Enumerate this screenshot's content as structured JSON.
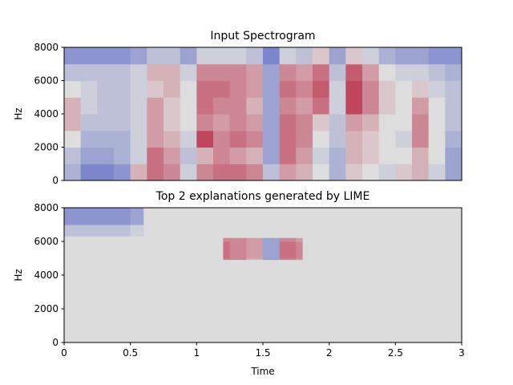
{
  "chart_data": [
    {
      "type": "heatmap",
      "title": "Input Spectrogram",
      "ylabel": "Hz",
      "xlim": [
        0,
        3
      ],
      "ylim": [
        0,
        8000
      ],
      "yticks": [
        0,
        2000,
        4000,
        6000,
        8000
      ],
      "colormap": [
        "#3b4cc0",
        "#dddddd",
        "#b40426"
      ],
      "z": [
        [
          0.35,
          0.2,
          0.2,
          0.25,
          0.6,
          0.75,
          0.7,
          0.45,
          0.7,
          0.75,
          0.75,
          0.7,
          0.4,
          0.65,
          0.6,
          0.5,
          0.35,
          0.55,
          0.5,
          0.45,
          0.55,
          0.6,
          0.45,
          0.3
        ],
        [
          0.4,
          0.3,
          0.3,
          0.35,
          0.45,
          0.75,
          0.65,
          0.4,
          0.6,
          0.7,
          0.65,
          0.6,
          0.3,
          0.75,
          0.65,
          0.45,
          0.35,
          0.6,
          0.55,
          0.5,
          0.5,
          0.6,
          0.5,
          0.3
        ],
        [
          0.5,
          0.35,
          0.35,
          0.35,
          0.45,
          0.65,
          0.6,
          0.45,
          0.85,
          0.7,
          0.75,
          0.7,
          0.3,
          0.75,
          0.7,
          0.5,
          0.4,
          0.6,
          0.55,
          0.5,
          0.45,
          0.7,
          0.5,
          0.35
        ],
        [
          0.6,
          0.4,
          0.4,
          0.4,
          0.45,
          0.65,
          0.55,
          0.5,
          0.7,
          0.65,
          0.7,
          0.65,
          0.3,
          0.75,
          0.7,
          0.55,
          0.4,
          0.65,
          0.6,
          0.5,
          0.5,
          0.7,
          0.5,
          0.4
        ],
        [
          0.6,
          0.45,
          0.4,
          0.4,
          0.45,
          0.65,
          0.55,
          0.5,
          0.75,
          0.7,
          0.7,
          0.6,
          0.3,
          0.7,
          0.65,
          0.75,
          0.45,
          0.85,
          0.7,
          0.55,
          0.5,
          0.65,
          0.5,
          0.4
        ],
        [
          0.5,
          0.45,
          0.4,
          0.4,
          0.45,
          0.55,
          0.6,
          0.5,
          0.75,
          0.75,
          0.7,
          0.65,
          0.3,
          0.75,
          0.7,
          0.8,
          0.45,
          0.85,
          0.7,
          0.55,
          0.5,
          0.55,
          0.45,
          0.4
        ],
        [
          0.4,
          0.4,
          0.4,
          0.4,
          0.45,
          0.6,
          0.6,
          0.45,
          0.7,
          0.7,
          0.7,
          0.65,
          0.3,
          0.7,
          0.65,
          0.75,
          0.4,
          0.8,
          0.65,
          0.5,
          0.45,
          0.45,
          0.4,
          0.35
        ],
        [
          0.25,
          0.25,
          0.25,
          0.25,
          0.3,
          0.4,
          0.4,
          0.3,
          0.45,
          0.45,
          0.45,
          0.4,
          0.2,
          0.45,
          0.4,
          0.55,
          0.3,
          0.55,
          0.45,
          0.35,
          0.3,
          0.3,
          0.25,
          0.25
        ]
      ]
    },
    {
      "type": "mask",
      "title": "Top 2 explanations generated by LIME",
      "ylabel": "Hz",
      "xlabel": "Time",
      "xlim": [
        0,
        3
      ],
      "ylim": [
        0,
        8000
      ],
      "xticks": [
        0,
        0.5,
        1,
        1.5,
        2,
        2.5,
        3
      ],
      "yticks": [
        0,
        2000,
        4000,
        6000,
        8000
      ],
      "mask_color": "#dcdcdc",
      "regions": [
        {
          "x": [
            0,
            0.6
          ],
          "y": [
            6300,
            8000
          ]
        },
        {
          "x": [
            1.2,
            1.8
          ],
          "y": [
            4900,
            6200
          ]
        }
      ]
    }
  ]
}
